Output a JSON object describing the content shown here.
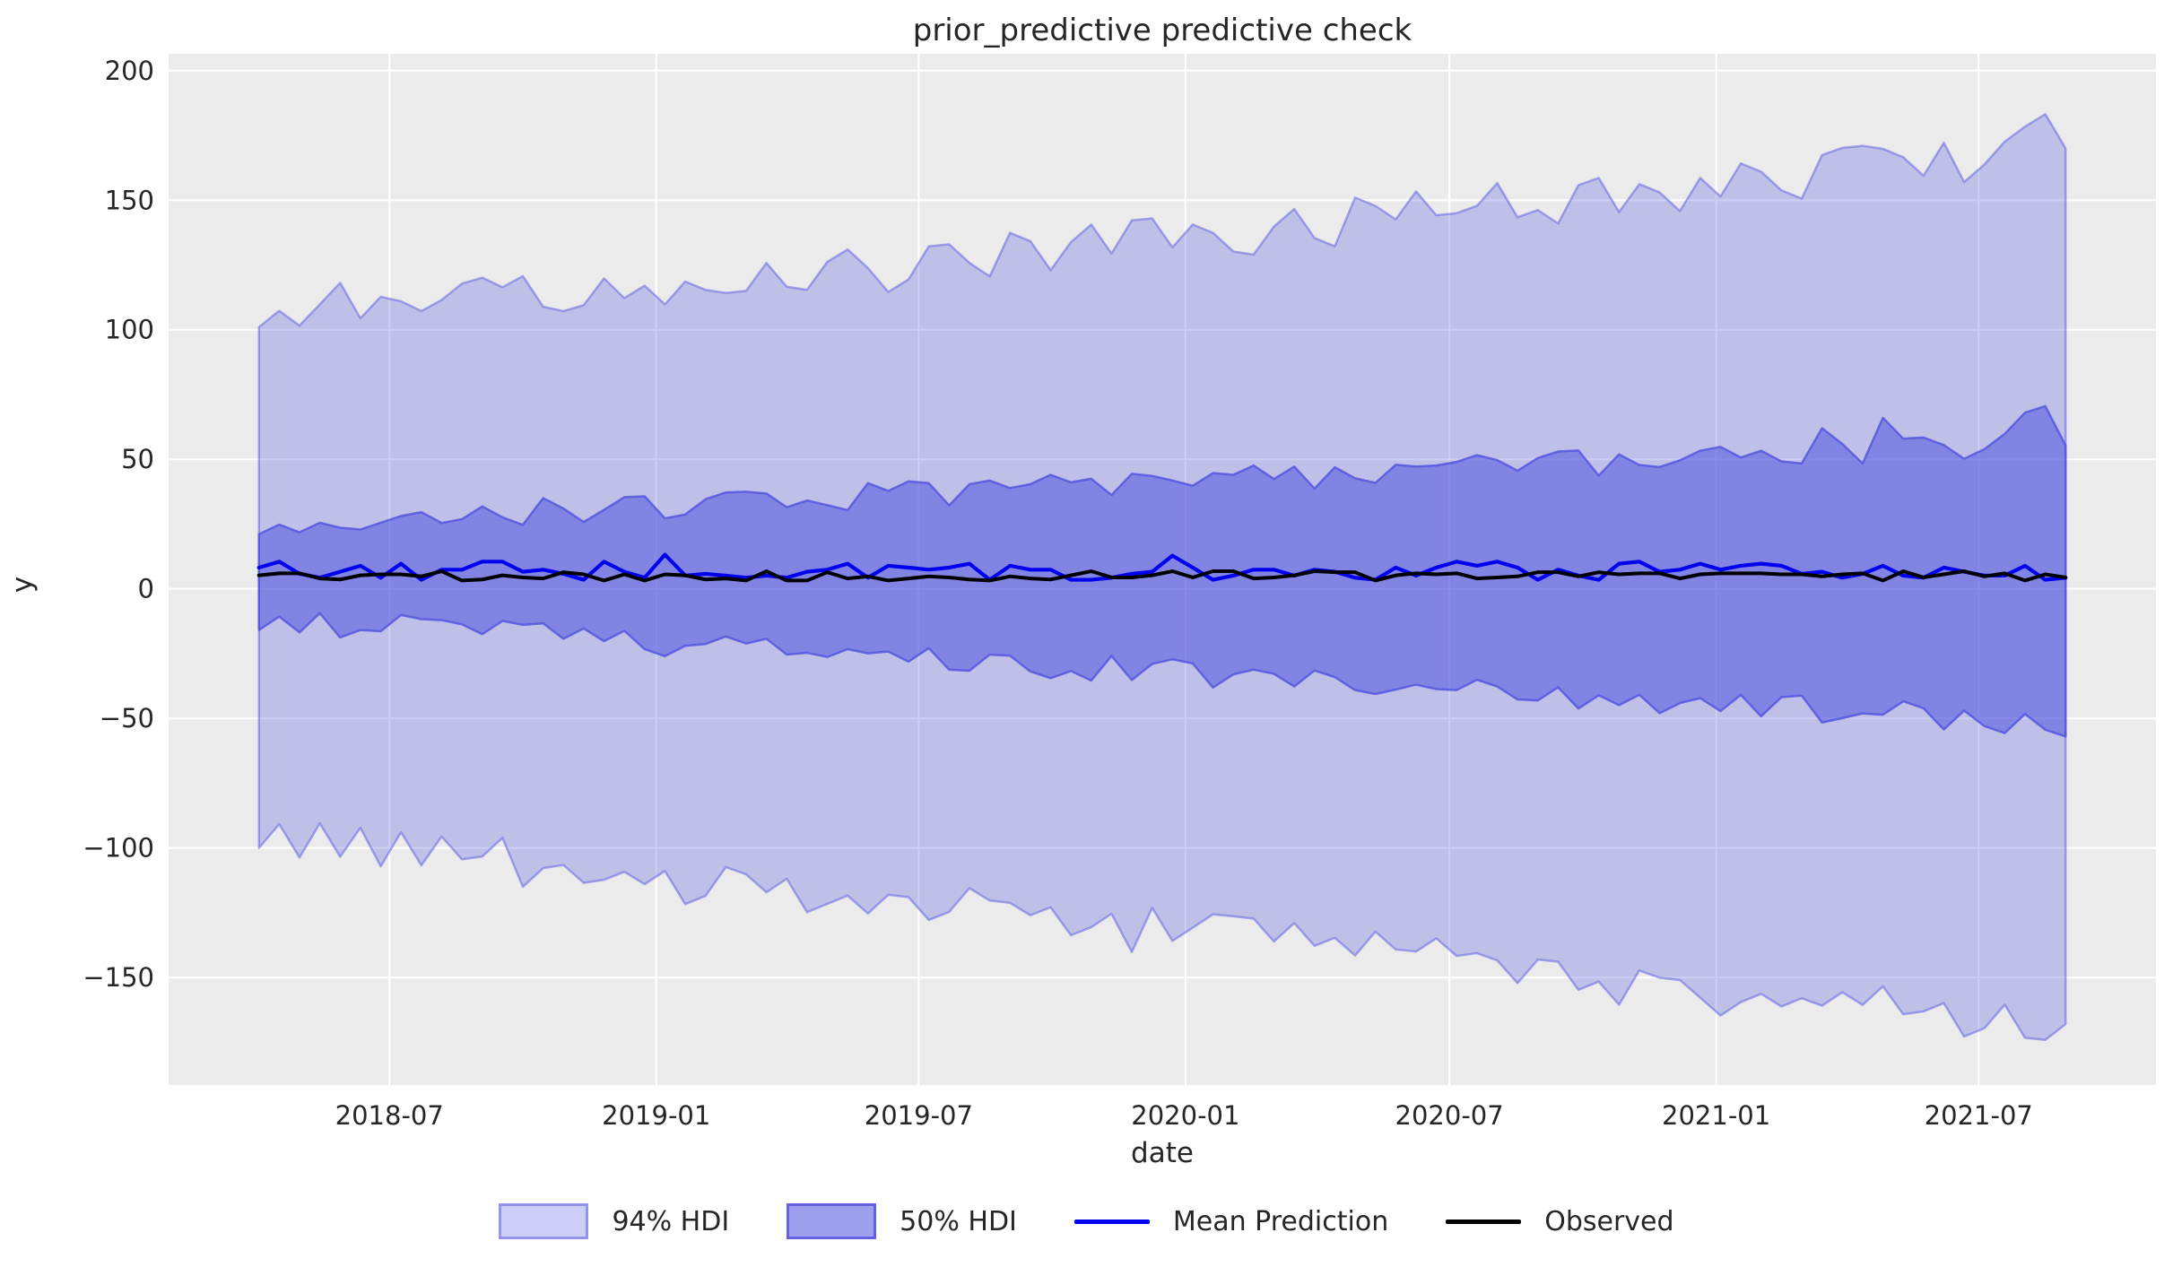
{
  "figure": {
    "background": "#ffffff"
  },
  "chart_data": {
    "type": "area",
    "title": "prior_predictive predictive check",
    "xlabel": "date",
    "ylabel": "y",
    "style": {
      "axes_background": "#ebebeb",
      "grid_color": "#ffffff",
      "text_color": "#262626",
      "hdi94_fill": "rgba(90,92,225,0.30)",
      "hdi94_edge": "rgba(90,92,225,0.50)",
      "hdi50_fill": "rgba(80,82,222,0.55)",
      "hdi50_edge": "rgba(80,82,222,0.80)",
      "mean_color": "#0000ee",
      "observed_color": "#000000"
    },
    "x_axis": {
      "start_date": "2018-04-02",
      "step_days": 14,
      "n_points": 90,
      "range_days": [
        -62.3,
        1308.3
      ],
      "ticks": [
        {
          "label": "2018-07",
          "day": 90
        },
        {
          "label": "2019-01",
          "day": 274
        },
        {
          "label": "2019-07",
          "day": 455
        },
        {
          "label": "2020-01",
          "day": 639
        },
        {
          "label": "2020-07",
          "day": 821
        },
        {
          "label": "2021-01",
          "day": 1005
        },
        {
          "label": "2021-07",
          "day": 1186
        }
      ]
    },
    "y_axis": {
      "range": [
        -191.5,
        206.5
      ],
      "ticks": [
        {
          "label": "200",
          "value": 200
        },
        {
          "label": "150",
          "value": 150
        },
        {
          "label": "100",
          "value": 100
        },
        {
          "label": "50",
          "value": 50
        },
        {
          "label": "0",
          "value": 0
        },
        {
          "label": "−50",
          "value": -50
        },
        {
          "label": "−100",
          "value": -100
        },
        {
          "label": "−150",
          "value": -150
        }
      ]
    },
    "series": [
      {
        "name": "94% HDI",
        "kind": "band",
        "upper": [
          101.0,
          107.3,
          101.6,
          109.8,
          118.1,
          104.4,
          112.7,
          111.0,
          107.2,
          111.5,
          117.8,
          120.1,
          116.4,
          120.7,
          108.9,
          107.2,
          109.5,
          119.8,
          112.2,
          117.0,
          109.8,
          118.6,
          115.4,
          114.2,
          115.0,
          125.8,
          116.6,
          115.4,
          126.2,
          131.0,
          123.8,
          114.6,
          119.4,
          132.2,
          133.0,
          125.8,
          120.6,
          137.4,
          134.2,
          123.0,
          133.8,
          140.6,
          129.4,
          142.2,
          143.0,
          131.8,
          140.6,
          137.4,
          130.2,
          129.0,
          139.8,
          146.6,
          135.4,
          132.2,
          151.0,
          147.8,
          142.6,
          153.4,
          144.2,
          145.0,
          147.8,
          156.6,
          143.4,
          146.2,
          141.0,
          155.8,
          158.6,
          145.4,
          156.2,
          153.0,
          145.8,
          158.6,
          151.4,
          164.2,
          161.0,
          153.8,
          150.6,
          167.4,
          170.2,
          171.0,
          169.8,
          166.6,
          159.4,
          172.2,
          157.0,
          163.8,
          172.6,
          178.4,
          183.2,
          170.0
        ],
        "lower": [
          -100.0,
          -90.8,
          -103.7,
          -90.5,
          -103.4,
          -92.2,
          -107.1,
          -93.9,
          -106.7,
          -95.6,
          -104.4,
          -103.3,
          -96.1,
          -115.0,
          -107.8,
          -106.6,
          -113.5,
          -112.3,
          -109.2,
          -114.0,
          -108.9,
          -121.7,
          -118.5,
          -107.4,
          -110.2,
          -117.1,
          -111.9,
          -124.8,
          -121.6,
          -118.4,
          -125.3,
          -118.1,
          -119.0,
          -127.8,
          -124.7,
          -115.5,
          -120.3,
          -121.2,
          -126.0,
          -122.9,
          -133.7,
          -130.6,
          -125.4,
          -140.2,
          -123.1,
          -135.9,
          -130.8,
          -125.6,
          -126.4,
          -127.3,
          -136.1,
          -129.0,
          -137.8,
          -134.7,
          -141.5,
          -132.3,
          -139.2,
          -140.0,
          -134.9,
          -141.7,
          -140.6,
          -143.4,
          -152.2,
          -143.1,
          -143.9,
          -154.8,
          -151.6,
          -160.5,
          -147.3,
          -150.1,
          -151.0,
          -157.8,
          -164.7,
          -159.5,
          -156.3,
          -161.2,
          -158.0,
          -160.9,
          -155.7,
          -160.6,
          -153.4,
          -164.2,
          -163.1,
          -159.9,
          -172.8,
          -169.6,
          -160.5,
          -173.3,
          -174.1,
          -168.0
        ]
      },
      {
        "name": "50% HDI",
        "kind": "band",
        "upper": [
          21.1,
          24.8,
          21.8,
          25.5,
          23.6,
          22.9,
          25.5,
          28.1,
          29.6,
          25.4,
          26.9,
          31.8,
          27.6,
          24.7,
          35.0,
          31.0,
          25.8,
          30.5,
          35.4,
          35.7,
          27.2,
          28.7,
          34.6,
          37.2,
          37.5,
          36.8,
          31.5,
          34.1,
          32.3,
          30.4,
          40.8,
          37.8,
          41.5,
          40.8,
          32.2,
          40.4,
          41.8,
          38.9,
          40.4,
          44.0,
          41.1,
          42.5,
          36.2,
          44.4,
          43.6,
          41.8,
          39.8,
          44.7,
          44.0,
          47.6,
          42.4,
          47.2,
          38.7,
          46.9,
          42.7,
          40.9,
          47.9,
          47.2,
          47.6,
          49.0,
          51.6,
          49.7,
          45.6,
          50.5,
          53.0,
          53.4,
          43.7,
          51.9,
          47.8,
          47.0,
          49.6,
          53.3,
          54.8,
          50.7,
          53.3,
          49.2,
          48.4,
          62.0,
          55.9,
          48.4,
          66.0,
          58.0,
          58.4,
          55.5,
          50.2,
          53.9,
          59.8,
          68.0,
          70.5,
          55.3
        ],
        "lower": [
          -15.9,
          -10.7,
          -16.8,
          -9.4,
          -18.8,
          -15.9,
          -16.4,
          -10.1,
          -11.7,
          -12.1,
          -13.7,
          -17.5,
          -12.4,
          -13.9,
          -13.3,
          -19.3,
          -15.3,
          -20.2,
          -16.2,
          -23.3,
          -26.0,
          -22.0,
          -21.3,
          -18.4,
          -21.1,
          -19.3,
          -25.4,
          -24.7,
          -26.3,
          -23.3,
          -24.9,
          -24.2,
          -28.1,
          -22.9,
          -31.2,
          -31.6,
          -25.4,
          -25.8,
          -31.9,
          -34.5,
          -31.7,
          -35.4,
          -25.9,
          -35.2,
          -29.0,
          -27.2,
          -28.8,
          -38.1,
          -33.0,
          -31.2,
          -32.8,
          -37.7,
          -31.5,
          -34.1,
          -39.1,
          -40.6,
          -38.9,
          -37.0,
          -38.7,
          -39.1,
          -35.1,
          -37.7,
          -42.7,
          -43.1,
          -38.0,
          -46.2,
          -41.1,
          -44.9,
          -40.9,
          -48.0,
          -44.1,
          -42.2,
          -47.2,
          -40.9,
          -49.2,
          -41.8,
          -41.2,
          -51.6,
          -49.9,
          -48.1,
          -48.6,
          -43.4,
          -46.1,
          -54.3,
          -47.0,
          -53.0,
          -55.7,
          -48.3,
          -54.4,
          -57.0
        ]
      },
      {
        "name": "Mean Prediction",
        "kind": "line",
        "values": [
          8.2,
          10.5,
          5.8,
          4.3,
          6.6,
          8.9,
          4.3,
          9.7,
          3.5,
          7.4,
          7.4,
          10.5,
          10.5,
          6.6,
          7.4,
          5.8,
          3.5,
          10.5,
          6.6,
          4.3,
          13.2,
          5.1,
          5.8,
          5.1,
          4.3,
          5.1,
          4.3,
          6.6,
          7.4,
          9.7,
          4.3,
          8.9,
          8.2,
          7.4,
          8.2,
          9.7,
          3.5,
          8.9,
          7.4,
          7.4,
          3.5,
          3.5,
          4.3,
          5.8,
          6.6,
          12.8,
          8.2,
          3.5,
          5.1,
          7.4,
          7.4,
          5.1,
          7.4,
          6.6,
          4.3,
          3.5,
          8.2,
          5.1,
          8.2,
          10.5,
          8.9,
          10.5,
          8.2,
          3.5,
          7.4,
          5.1,
          3.5,
          9.7,
          10.5,
          6.6,
          7.4,
          9.7,
          7.4,
          8.9,
          9.7,
          8.9,
          5.8,
          6.6,
          4.3,
          5.8,
          8.9,
          5.1,
          4.3,
          8.2,
          6.6,
          5.1,
          5.1,
          8.9,
          3.5,
          4.3
        ]
      },
      {
        "name": "Observed",
        "kind": "line",
        "values": [
          5.2,
          6.0,
          6.0,
          4.0,
          3.6,
          5.2,
          5.6,
          5.6,
          4.8,
          6.8,
          3.2,
          3.6,
          5.2,
          4.4,
          4.0,
          6.4,
          5.6,
          3.2,
          5.6,
          3.2,
          5.6,
          5.2,
          3.6,
          4.0,
          3.2,
          6.8,
          3.2,
          3.2,
          6.4,
          4.0,
          4.8,
          3.2,
          4.0,
          4.8,
          4.4,
          3.6,
          3.2,
          4.8,
          4.0,
          3.6,
          5.2,
          6.8,
          4.4,
          4.4,
          5.2,
          6.8,
          4.4,
          6.8,
          6.8,
          4.0,
          4.4,
          5.2,
          6.8,
          6.4,
          6.4,
          3.2,
          5.2,
          6.0,
          5.6,
          6.0,
          4.0,
          4.4,
          4.8,
          6.4,
          6.4,
          4.8,
          6.4,
          5.6,
          6.0,
          6.0,
          4.0,
          5.6,
          6.0,
          6.0,
          6.0,
          5.6,
          5.6,
          4.8,
          5.6,
          6.0,
          3.2,
          6.8,
          4.4,
          5.6,
          6.8,
          4.8,
          6.0,
          3.2,
          5.6,
          4.4
        ]
      }
    ],
    "legend": {
      "position": "bottom-center",
      "entries": [
        {
          "label": "94% HDI",
          "swatch": "patch",
          "fill": "rgba(90,92,225,0.30)",
          "border": "rgba(90,92,225,0.50)"
        },
        {
          "label": "50% HDI",
          "swatch": "patch",
          "fill": "rgba(80,82,222,0.55)",
          "border": "rgba(80,82,222,0.80)"
        },
        {
          "label": "Mean Prediction",
          "swatch": "line",
          "color": "#0000ee"
        },
        {
          "label": "Observed",
          "swatch": "line",
          "color": "#000000"
        }
      ]
    }
  }
}
